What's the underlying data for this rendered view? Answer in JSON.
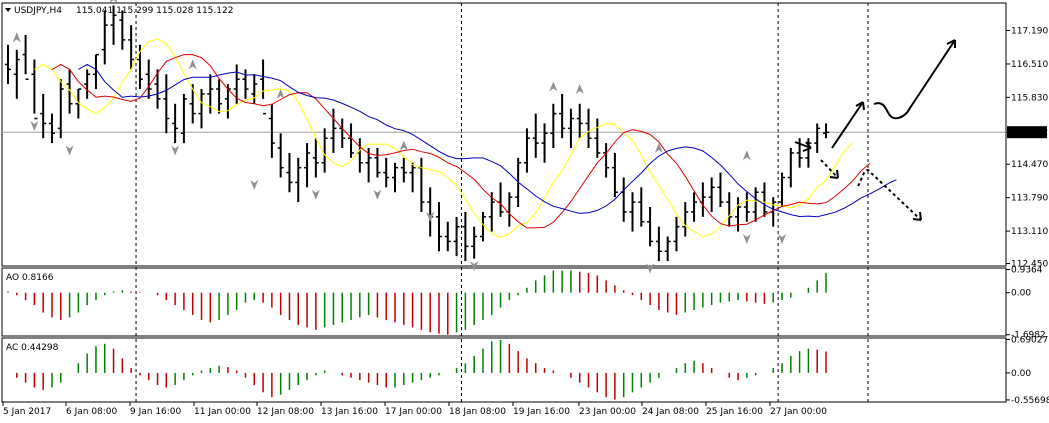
{
  "chart_title": {
    "symbol_timeframe": "USDJPY,H4",
    "ohlc": "115.041 115.299 115.028 115.122"
  },
  "colors": {
    "ma_fast": "#ffff00",
    "ma_mid": "#e00000",
    "ma_slow": "#0000c0",
    "up_bar": "#008000",
    "down_bar": "#c00000",
    "candle": "#000000",
    "fractal": "#909090",
    "current_price_box": "#000000",
    "current_price_text": "#ffffff"
  },
  "chart_data": [
    {
      "type": "line",
      "name": "price-panel",
      "current_price": "115.122",
      "yticks": [
        "117.190",
        "116.510",
        "115.830",
        "115.122",
        "114.470",
        "113.790",
        "113.110",
        "112.450"
      ],
      "ylim": [
        112.4,
        117.75
      ],
      "x_ticks": [
        "5 Jan 2017",
        "6 Jan 08:00",
        "9 Jan 16:00",
        "11 Jan 00:00",
        "12 Jan 08:00",
        "13 Jan 16:00",
        "17 Jan 00:00",
        "18 Jan 08:00",
        "19 Jan 16:00",
        "23 Jan 00:00",
        "24 Jan 08:00",
        "25 Jan 16:00",
        "27 Jan 00:00"
      ],
      "bars": [
        [
          116.5,
          116.9,
          116.1,
          116.4
        ],
        [
          116.3,
          116.8,
          115.8,
          116.6
        ],
        [
          116.7,
          117.1,
          116.3,
          116.2
        ],
        [
          116.3,
          116.6,
          115.5,
          115.4
        ],
        [
          115.5,
          115.9,
          115.0,
          115.3
        ],
        [
          115.3,
          115.5,
          114.9,
          115.1
        ],
        [
          115.2,
          116.2,
          115.0,
          116.0
        ],
        [
          116.1,
          116.4,
          115.5,
          115.7
        ],
        [
          115.7,
          116.0,
          115.4,
          116.0
        ],
        [
          116.1,
          116.4,
          115.8,
          116.3
        ],
        [
          116.3,
          116.7,
          116.0,
          116.7
        ],
        [
          116.8,
          117.6,
          116.5,
          117.3
        ],
        [
          117.3,
          117.7,
          116.9,
          117.5
        ],
        [
          117.4,
          117.6,
          116.8,
          117.0
        ],
        [
          117.0,
          117.3,
          116.4,
          116.6
        ],
        [
          116.6,
          116.9,
          116.0,
          116.2
        ],
        [
          116.3,
          116.6,
          115.8,
          116.0
        ],
        [
          116.1,
          116.4,
          115.6,
          115.8
        ],
        [
          115.8,
          116.3,
          115.1,
          115.4
        ],
        [
          115.3,
          115.7,
          114.9,
          115.2
        ],
        [
          115.1,
          115.9,
          114.9,
          115.8
        ],
        [
          115.7,
          116.1,
          115.3,
          115.5
        ],
        [
          115.5,
          116.0,
          115.2,
          115.9
        ],
        [
          115.9,
          116.3,
          115.5,
          116.0
        ],
        [
          116.0,
          116.2,
          115.5,
          115.7
        ],
        [
          115.8,
          116.1,
          115.4,
          116.0
        ],
        [
          116.0,
          116.5,
          115.7,
          116.2
        ],
        [
          116.2,
          116.4,
          115.8,
          116.0
        ],
        [
          115.9,
          116.3,
          115.7,
          116.1
        ],
        [
          116.2,
          116.6,
          115.8,
          115.5
        ],
        [
          115.4,
          115.7,
          114.6,
          114.9
        ],
        [
          114.8,
          115.1,
          114.2,
          114.4
        ],
        [
          114.3,
          114.7,
          113.9,
          114.1
        ],
        [
          114.1,
          114.6,
          113.7,
          114.4
        ],
        [
          114.4,
          114.9,
          114.0,
          114.7
        ],
        [
          114.6,
          115.0,
          114.2,
          114.5
        ],
        [
          114.5,
          115.2,
          114.3,
          115.0
        ],
        [
          115.0,
          115.6,
          114.7,
          115.2
        ],
        [
          115.2,
          115.4,
          114.8,
          115.0
        ],
        [
          115.0,
          115.3,
          114.6,
          114.7
        ],
        [
          114.7,
          115.0,
          114.3,
          114.5
        ],
        [
          114.5,
          114.8,
          114.1,
          114.6
        ],
        [
          114.6,
          114.8,
          114.2,
          114.3
        ],
        [
          114.3,
          114.6,
          114.0,
          114.2
        ],
        [
          114.2,
          114.5,
          113.9,
          114.4
        ],
        [
          114.4,
          114.6,
          114.1,
          114.3
        ],
        [
          114.3,
          114.5,
          113.9,
          114.4
        ],
        [
          114.4,
          114.6,
          113.5,
          113.7
        ],
        [
          113.7,
          114.0,
          113.0,
          113.4
        ],
        [
          113.4,
          113.7,
          112.7,
          113.0
        ],
        [
          113.0,
          113.3,
          112.7,
          112.9
        ],
        [
          112.9,
          113.4,
          112.6,
          113.2
        ],
        [
          113.2,
          113.5,
          112.5,
          112.8
        ],
        [
          112.8,
          113.2,
          112.55,
          113.0
        ],
        [
          113.0,
          113.5,
          112.9,
          113.4
        ],
        [
          113.4,
          113.9,
          113.1,
          113.7
        ],
        [
          113.7,
          114.1,
          113.4,
          113.5
        ],
        [
          113.5,
          113.9,
          113.2,
          113.8
        ],
        [
          113.8,
          114.6,
          113.6,
          114.5
        ],
        [
          114.5,
          115.2,
          114.3,
          115.0
        ],
        [
          115.0,
          115.5,
          114.6,
          114.9
        ],
        [
          114.9,
          115.3,
          114.5,
          115.1
        ],
        [
          115.1,
          115.7,
          114.8,
          115.5
        ],
        [
          115.5,
          115.9,
          115.0,
          115.2
        ],
        [
          115.2,
          115.6,
          114.8,
          115.4
        ],
        [
          115.4,
          115.7,
          115.0,
          115.3
        ],
        [
          115.3,
          115.6,
          114.8,
          115.0
        ],
        [
          115.0,
          115.4,
          114.6,
          114.7
        ],
        [
          114.7,
          114.9,
          114.2,
          114.4
        ],
        [
          114.4,
          114.7,
          113.8,
          113.9
        ],
        [
          113.9,
          114.2,
          113.3,
          113.5
        ],
        [
          113.5,
          113.9,
          113.1,
          113.7
        ],
        [
          113.7,
          114.0,
          113.2,
          113.3
        ],
        [
          113.3,
          113.6,
          112.8,
          112.9
        ],
        [
          112.9,
          113.2,
          112.5,
          112.7
        ],
        [
          112.7,
          113.0,
          112.5,
          112.9
        ],
        [
          112.9,
          113.4,
          112.7,
          113.2
        ],
        [
          113.2,
          113.7,
          113.0,
          113.5
        ],
        [
          113.5,
          113.9,
          113.3,
          113.7
        ],
        [
          113.7,
          114.1,
          113.4,
          113.8
        ],
        [
          113.8,
          114.2,
          113.5,
          114.0
        ],
        [
          114.0,
          114.3,
          113.6,
          113.7
        ],
        [
          113.7,
          113.9,
          113.2,
          113.4
        ],
        [
          113.4,
          113.8,
          113.1,
          113.6
        ],
        [
          113.6,
          113.9,
          113.3,
          113.5
        ],
        [
          113.5,
          114.0,
          113.3,
          113.9
        ],
        [
          113.9,
          114.1,
          113.4,
          113.5
        ],
        [
          113.5,
          113.8,
          113.2,
          113.7
        ],
        [
          113.7,
          114.3,
          113.6,
          114.2
        ],
        [
          114.2,
          114.8,
          114.0,
          114.7
        ],
        [
          114.7,
          115.0,
          114.4,
          114.6
        ],
        [
          114.6,
          115.0,
          114.4,
          114.9
        ],
        [
          114.9,
          115.3,
          114.7,
          115.2
        ],
        [
          115.1,
          115.3,
          115.0,
          115.12
        ]
      ],
      "fractals_up": [
        [
          1,
          116.95
        ],
        [
          12,
          117.75
        ],
        [
          21,
          116.4
        ],
        [
          31,
          115.8
        ],
        [
          45,
          114.75
        ],
        [
          62,
          115.95
        ],
        [
          65,
          115.9
        ],
        [
          74,
          114.7
        ],
        [
          84,
          114.55
        ]
      ],
      "fractals_down": [
        [
          3,
          115.35
        ],
        [
          7,
          114.85
        ],
        [
          19,
          114.85
        ],
        [
          28,
          114.15
        ],
        [
          35,
          113.95
        ],
        [
          42,
          113.95
        ],
        [
          48,
          113.5
        ],
        [
          53,
          112.5
        ],
        [
          73,
          112.45
        ],
        [
          84,
          113.05
        ],
        [
          88,
          113.05
        ]
      ]
    },
    {
      "type": "bar",
      "name": "ao-panel",
      "label": "AO 0.8166",
      "yticks": [
        "0.9364",
        "0.00",
        "-1.6982"
      ],
      "ylim": [
        -1.75,
        1.0
      ],
      "values": [
        0.05,
        -0.1,
        -0.3,
        -0.5,
        -0.8,
        -1.0,
        -1.1,
        -1.0,
        -0.8,
        -0.5,
        -0.3,
        -0.1,
        0.05,
        0.1,
        0.05,
        0.02,
        0.0,
        -0.1,
        -0.3,
        -0.5,
        -0.7,
        -0.9,
        -1.1,
        -1.2,
        -1.1,
        -0.9,
        -0.7,
        -0.4,
        -0.3,
        -0.4,
        -0.6,
        -0.9,
        -1.1,
        -1.3,
        -1.4,
        -1.5,
        -1.4,
        -1.3,
        -1.2,
        -1.1,
        -1.0,
        -0.9,
        -1.0,
        -1.1,
        -1.2,
        -1.3,
        -1.4,
        -1.5,
        -1.6,
        -1.65,
        -1.7,
        -1.6,
        -1.5,
        -1.3,
        -1.1,
        -0.9,
        -0.6,
        -0.3,
        -0.1,
        0.2,
        0.5,
        0.7,
        0.9,
        0.9,
        0.9,
        0.85,
        0.8,
        0.7,
        0.5,
        0.3,
        0.1,
        -0.1,
        -0.3,
        -0.5,
        -0.7,
        -0.8,
        -0.9,
        -0.8,
        -0.7,
        -0.6,
        -0.5,
        -0.4,
        -0.35,
        -0.3,
        -0.35,
        -0.4,
        -0.45,
        -0.4,
        -0.3,
        -0.2,
        0.0,
        0.2,
        0.5,
        0.8
      ]
    },
    {
      "type": "bar",
      "name": "ac-panel",
      "label": "AC 0.44298",
      "yticks": [
        "0.69027",
        "0.00",
        "-0.55698"
      ],
      "ylim": [
        -0.6,
        0.72
      ],
      "values": [
        0.0,
        -0.1,
        -0.2,
        -0.3,
        -0.35,
        -0.3,
        -0.2,
        0.0,
        0.2,
        0.4,
        0.55,
        0.6,
        0.5,
        0.3,
        0.1,
        -0.05,
        -0.15,
        -0.25,
        -0.3,
        -0.25,
        -0.15,
        -0.05,
        0.05,
        0.1,
        0.15,
        0.12,
        0.05,
        -0.1,
        -0.25,
        -0.4,
        -0.5,
        -0.45,
        -0.35,
        -0.25,
        -0.15,
        -0.05,
        0.05,
        0.0,
        -0.05,
        -0.1,
        -0.15,
        -0.2,
        -0.25,
        -0.3,
        -0.3,
        -0.25,
        -0.2,
        -0.15,
        -0.1,
        -0.05,
        0.0,
        0.1,
        0.2,
        0.35,
        0.5,
        0.65,
        0.68,
        0.6,
        0.45,
        0.3,
        0.2,
        0.1,
        0.05,
        0.0,
        -0.1,
        -0.2,
        -0.3,
        -0.4,
        -0.5,
        -0.55,
        -0.5,
        -0.4,
        -0.3,
        -0.2,
        -0.1,
        0.0,
        0.1,
        0.2,
        0.25,
        0.2,
        0.1,
        0.0,
        -0.1,
        -0.15,
        -0.1,
        -0.05,
        0.0,
        0.1,
        0.2,
        0.35,
        0.45,
        0.5,
        0.48,
        0.44
      ]
    }
  ]
}
